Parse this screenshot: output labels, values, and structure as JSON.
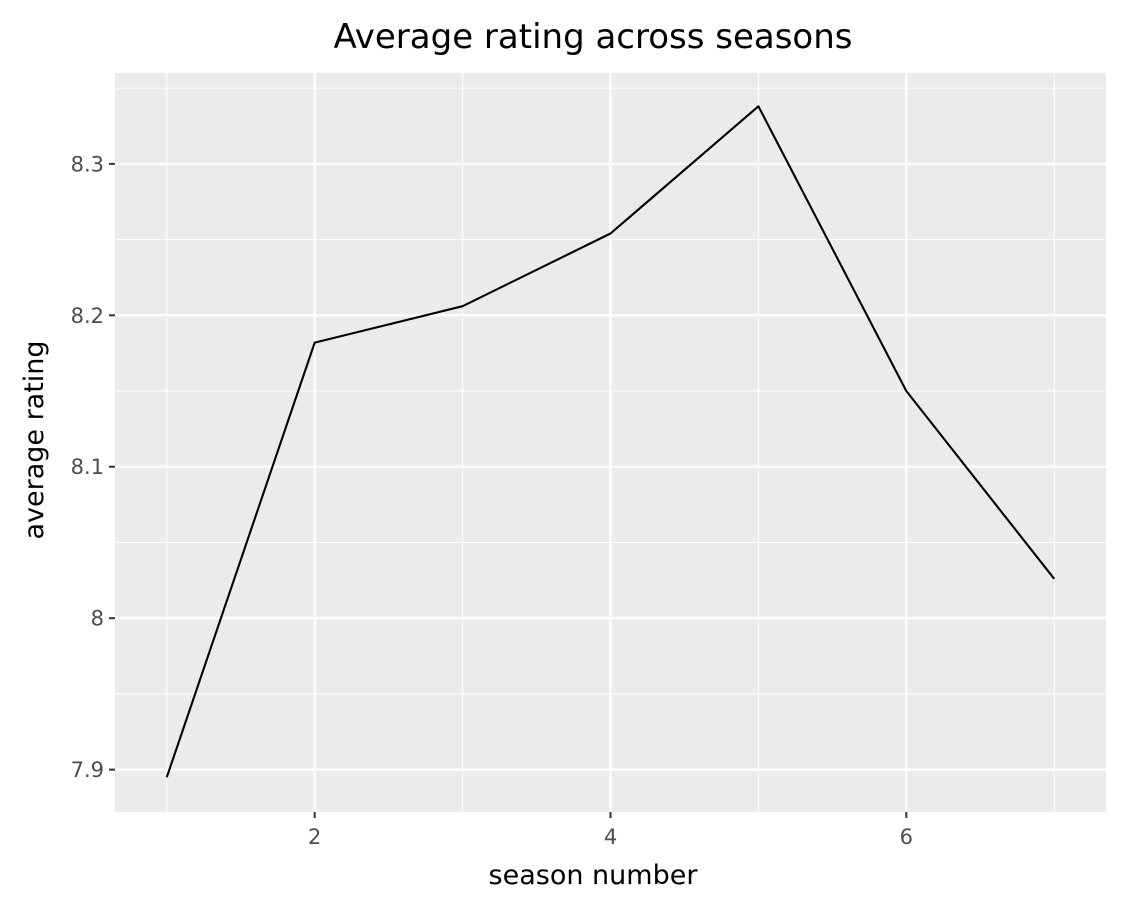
{
  "chart_data": {
    "type": "line",
    "title": "Average rating across seasons",
    "xlabel": "season number",
    "ylabel": "average rating",
    "x": [
      1,
      2,
      3,
      4,
      5,
      6,
      7
    ],
    "series": [
      {
        "values": [
          7.895,
          8.182,
          8.206,
          8.254,
          8.338,
          8.15,
          8.026
        ]
      }
    ],
    "xlim": [
      0.65,
      7.35
    ],
    "ylim": [
      7.872,
      8.36
    ],
    "x_ticks": [
      2,
      4,
      6
    ],
    "x_tick_labels": [
      "2",
      "4",
      "6"
    ],
    "x_minor_ticks": [
      1,
      3,
      5,
      7
    ],
    "y_ticks": [
      7.9,
      8.0,
      8.1,
      8.2,
      8.3
    ],
    "y_tick_labels": [
      "7.9",
      "8",
      "8.1",
      "8.2",
      "8.3"
    ],
    "y_minor_ticks": [
      7.95,
      8.05,
      8.15,
      8.25,
      8.35
    ],
    "grid": true,
    "legend": "none",
    "colors": {
      "panel": "#ebebeb",
      "grid": "#ffffff",
      "line": "#000000",
      "tick_label": "#4d4d4d"
    }
  }
}
